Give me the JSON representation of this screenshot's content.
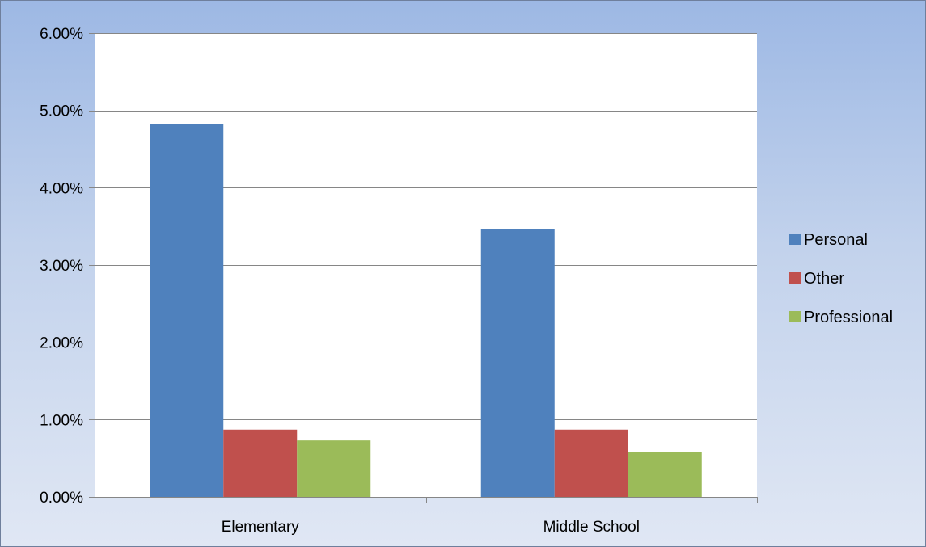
{
  "chart_data": {
    "type": "bar",
    "title": "",
    "xlabel": "",
    "ylabel": "",
    "categories": [
      "Elementary",
      "Middle School"
    ],
    "series": [
      {
        "name": "Personal",
        "values": [
          4.82,
          3.47
        ],
        "color": "#4f81bd"
      },
      {
        "name": "Other",
        "values": [
          0.87,
          0.87
        ],
        "color": "#c0504d"
      },
      {
        "name": "Professional",
        "values": [
          0.73,
          0.58
        ],
        "color": "#9bbb59"
      }
    ],
    "ylim": [
      0,
      6
    ],
    "yticks": [
      0,
      1,
      2,
      3,
      4,
      5,
      6
    ],
    "ytick_labels": [
      "0.00%",
      "1.00%",
      "2.00%",
      "3.00%",
      "4.00%",
      "5.00%",
      "6.00%"
    ],
    "y_unit": "percent",
    "grid": true,
    "legend_position": "right"
  }
}
